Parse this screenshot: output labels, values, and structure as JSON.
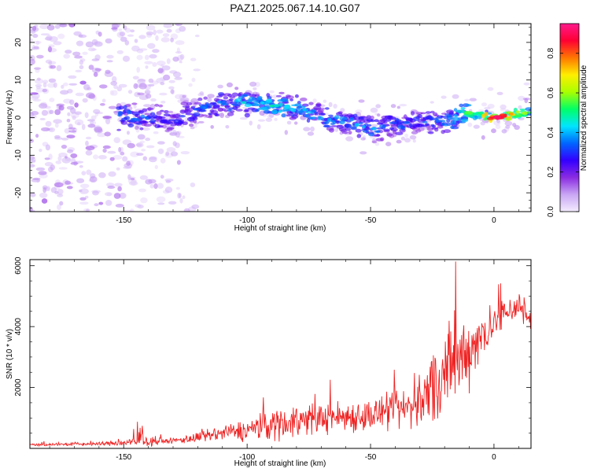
{
  "title": "PAZ1.2025.067.14.10.G07",
  "chart_data": [
    {
      "type": "heatmap",
      "name": "spectrogram",
      "title": "PAZ1.2025.067.14.10.G07",
      "xlabel": "Height of straight line (km)",
      "ylabel": "Frequency (Hz)",
      "xlim": [
        -188,
        15
      ],
      "ylim": [
        -25,
        25
      ],
      "xticks": [
        -150,
        -100,
        -50,
        0
      ],
      "yticks": [
        -20,
        -10,
        0,
        10,
        20
      ],
      "colorbar": {
        "label": "Normalized spectral amplitude",
        "range": [
          0,
          0.95
        ],
        "ticks": [
          "0.0",
          "0.2",
          "0.4",
          "0.6",
          "0.8"
        ],
        "tick_values": [
          0.0,
          0.2,
          0.4,
          0.6,
          0.8
        ],
        "colors": [
          "#f4ecff",
          "#c9a6f4",
          "#8a2be2",
          "#3300ff",
          "#0066ff",
          "#00e5ff",
          "#00ff66",
          "#aaff00",
          "#ffee00",
          "#ff7700",
          "#ff0033",
          "#ff1a8c"
        ]
      },
      "ridge": {
        "x": [
          -150,
          -140,
          -130,
          -120,
          -110,
          -100,
          -90,
          -80,
          -70,
          -60,
          -50,
          -40,
          -30,
          -20,
          -10,
          0,
          10,
          15
        ],
        "freq": [
          0.5,
          0,
          -1,
          2,
          4,
          4,
          3,
          2,
          0,
          -1,
          -3,
          -2,
          -1,
          -1,
          1,
          0,
          1,
          2
        ],
        "amplitude": [
          0.35,
          0.3,
          0.25,
          0.3,
          0.35,
          0.4,
          0.45,
          0.4,
          0.35,
          0.35,
          0.35,
          0.3,
          0.3,
          0.35,
          0.55,
          0.85,
          0.7,
          0.5
        ]
      }
    },
    {
      "type": "line",
      "name": "snr",
      "xlabel": "Height of straight line (km)",
      "ylabel": "SNR (10 * v/v)",
      "xlim": [
        -188,
        15
      ],
      "ylim": [
        0,
        6200
      ],
      "xticks": [
        -150,
        -100,
        -50,
        0
      ],
      "yticks": [
        2000,
        4000,
        6000
      ],
      "color": "#ee2222",
      "envelope_x": [
        -188,
        -160,
        -145,
        -130,
        -120,
        -110,
        -100,
        -90,
        -80,
        -70,
        -60,
        -50,
        -40,
        -30,
        -25,
        -20,
        -15,
        -10,
        -5,
        0,
        5,
        10,
        15
      ],
      "envelope_mean": [
        120,
        150,
        200,
        250,
        350,
        500,
        600,
        800,
        900,
        1000,
        1050,
        1100,
        1200,
        1500,
        2000,
        2400,
        2800,
        3300,
        3700,
        4100,
        4500,
        4700,
        4200
      ],
      "envelope_noise": [
        80,
        100,
        250,
        150,
        300,
        400,
        600,
        900,
        900,
        800,
        850,
        900,
        1000,
        1400,
        2200,
        2600,
        2400,
        2000,
        1400,
        1000,
        800,
        900,
        700
      ]
    }
  ]
}
